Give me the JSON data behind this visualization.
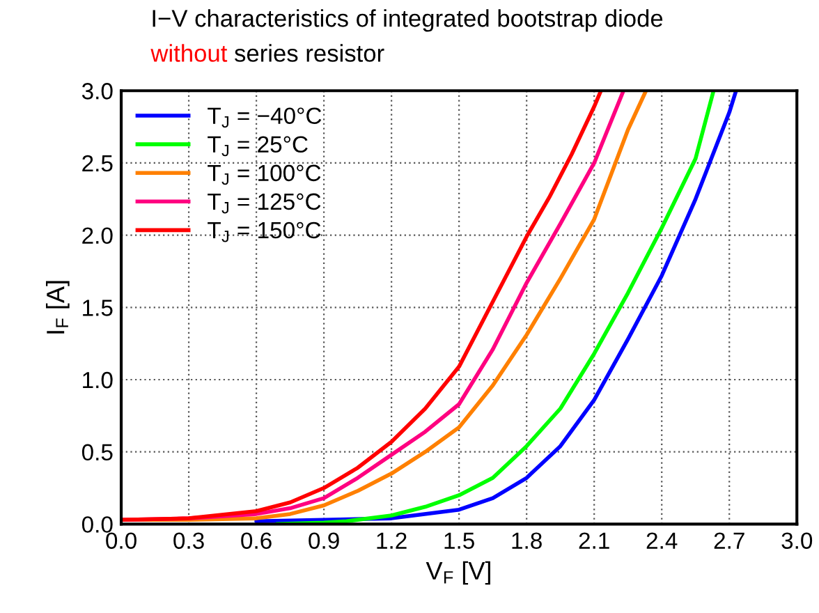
{
  "chart_data": {
    "type": "line",
    "title": "I−V characteristics of integrated bootstrap diode",
    "subtitle": "without series resistor",
    "xlabel": "V$_{F}$ [V]",
    "ylabel": "I$_{F}$ [A]",
    "xlim": [
      0.0,
      3.0
    ],
    "xticks": [
      {
        "value": 0,
        "label": "0.0"
      },
      0.3,
      0.6,
      0.9,
      1.2,
      1.5,
      1.8,
      2.1,
      2.4,
      2.7,
      {
        "value": 3,
        "label": "3.0"
      }
    ],
    "ylim": [
      0.0,
      3.0
    ],
    "yticks": [
      {
        "value": 0,
        "label": "0.0"
      },
      0.5,
      {
        "value": 1,
        "label": "1.0"
      },
      1.5,
      {
        "value": 2,
        "label": "2.0"
      },
      2.5,
      {
        "value": 3,
        "label": "3.0"
      }
    ],
    "grid": true,
    "legend": "top left",
    "line_style": "solid",
    "marker": "none",
    "series": [
      {
        "name": "T$_{J}$ = −40°C",
        "color": "#0000ff",
        "x": [
          0.6,
          0.9,
          1.2,
          1.5,
          1.65,
          1.8,
          1.95,
          2.1,
          2.25,
          2.4,
          2.55,
          2.7,
          2.73
        ],
        "values": [
          0.02,
          0.03,
          0.04,
          0.1,
          0.18,
          0.32,
          0.54,
          0.86,
          1.28,
          1.72,
          2.25,
          2.85,
          3.0
        ]
      },
      {
        "name": "T$_{J}$ = 25°C",
        "color": "#00ff00",
        "x": [
          0.69,
          0.9,
          1.0,
          1.2,
          1.35,
          1.5,
          1.65,
          1.8,
          1.95,
          2.1,
          2.25,
          2.4,
          2.55,
          2.63
        ],
        "values": [
          0.0,
          0.01,
          0.02,
          0.06,
          0.12,
          0.2,
          0.32,
          0.54,
          0.8,
          1.18,
          1.6,
          2.05,
          2.53,
          3.0
        ]
      },
      {
        "name": "T$_{J}$ = 100°C",
        "color": "#ff8000",
        "x": [
          0.0,
          0.3,
          0.6,
          0.75,
          0.9,
          1.05,
          1.2,
          1.35,
          1.5,
          1.65,
          1.8,
          1.95,
          2.1,
          2.25,
          2.33
        ],
        "values": [
          0.03,
          0.03,
          0.04,
          0.07,
          0.13,
          0.23,
          0.35,
          0.5,
          0.67,
          0.96,
          1.31,
          1.7,
          2.11,
          2.73,
          3.0
        ]
      },
      {
        "name": "T$_{J}$ = 125°C",
        "color": "#ff0080",
        "x": [
          0.0,
          0.3,
          0.6,
          0.75,
          0.9,
          1.05,
          1.2,
          1.35,
          1.5,
          1.65,
          1.8,
          1.95,
          2.1,
          2.23
        ],
        "values": [
          0.03,
          0.04,
          0.07,
          0.11,
          0.18,
          0.32,
          0.48,
          0.64,
          0.83,
          1.21,
          1.67,
          2.08,
          2.5,
          3.0
        ]
      },
      {
        "name": "T$_{J}$ = 150°C",
        "color": "#ff0000",
        "x": [
          0.0,
          0.3,
          0.6,
          0.75,
          0.9,
          1.05,
          1.2,
          1.35,
          1.5,
          1.65,
          1.8,
          1.9,
          2.0,
          2.1,
          2.13
        ],
        "values": [
          0.03,
          0.04,
          0.09,
          0.15,
          0.25,
          0.39,
          0.57,
          0.8,
          1.09,
          1.54,
          1.99,
          2.26,
          2.56,
          2.89,
          3.0
        ]
      }
    ]
  }
}
